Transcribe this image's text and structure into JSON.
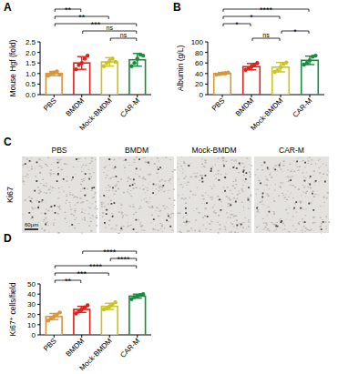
{
  "panel_labels": [
    "A",
    "B",
    "C",
    "D"
  ],
  "chart_data": [
    {
      "type": "bar",
      "y_label": "Mouse Hgf (fold)",
      "categories": [
        "PBS",
        "BMDM",
        "Mock-BMDM",
        "CAR-M"
      ],
      "values": [
        1.0,
        1.5,
        1.55,
        1.65
      ],
      "errors": [
        0.1,
        0.3,
        0.2,
        0.3
      ],
      "points": [
        [
          0.9,
          1.0,
          1.05,
          1.1,
          0.95
        ],
        [
          1.2,
          1.4,
          1.5,
          1.7,
          1.85
        ],
        [
          1.35,
          1.5,
          1.6,
          1.7,
          1.55
        ],
        [
          1.35,
          1.5,
          1.7,
          1.9,
          1.85
        ]
      ],
      "colors": [
        "#d9953b",
        "#e0201b",
        "#c9c421",
        "#1a8a3c"
      ],
      "ylim": [
        0,
        2.5
      ],
      "yticks": [
        {
          "value": 0,
          "label": "0.0"
        },
        0.5,
        {
          "value": 1,
          "label": "1.0"
        },
        1.5,
        {
          "value": 2,
          "label": "2.0"
        },
        2.5
      ],
      "significance": [
        {
          "between": [
            "Mock-BMDM",
            "CAR-M"
          ],
          "label": "ns"
        },
        {
          "between": [
            "BMDM",
            "CAR-M"
          ],
          "label": "ns"
        },
        {
          "between": [
            "PBS",
            "CAR-M"
          ],
          "label": "***"
        },
        {
          "between": [
            "PBS",
            "Mock-BMDM"
          ],
          "label": "**"
        },
        {
          "between": [
            "PBS",
            "BMDM"
          ],
          "label": "**"
        }
      ]
    },
    {
      "type": "bar",
      "y_label": "Albumin (g/L)",
      "categories": [
        "PBS",
        "BMDM",
        "Mock-BMDM",
        "CAR-M"
      ],
      "values": [
        40,
        53,
        52,
        65
      ],
      "errors": [
        2,
        6,
        9,
        8
      ],
      "points": [
        [
          38,
          39,
          40,
          41,
          42
        ],
        [
          47,
          50,
          53,
          57,
          60
        ],
        [
          43,
          46,
          52,
          58,
          61
        ],
        [
          57,
          60,
          65,
          72,
          74
        ]
      ],
      "colors": [
        "#d9953b",
        "#e0201b",
        "#c9c421",
        "#1a8a3c"
      ],
      "ylim": [
        0,
        100
      ],
      "yticks": [
        0,
        20,
        40,
        60,
        80,
        100
      ],
      "significance": [
        {
          "between": [
            "BMDM",
            "Mock-BMDM"
          ],
          "label": "ns"
        },
        {
          "between": [
            "Mock-BMDM",
            "CAR-M"
          ],
          "label": "*"
        },
        {
          "between": [
            "PBS",
            "BMDM"
          ],
          "label": "*"
        },
        {
          "between": [
            "PBS",
            "Mock-BMDM"
          ],
          "label": "*"
        },
        {
          "between": [
            "PBS",
            "CAR-M"
          ],
          "label": "****"
        }
      ]
    },
    {
      "type": "bar",
      "y_label": "Ki67⁺ cells/field",
      "categories": [
        "PBS",
        "BMDM",
        "Mock-BMDM",
        "CAR-M"
      ],
      "values": [
        18,
        25,
        28,
        38
      ],
      "errors": [
        3,
        3,
        3,
        2
      ],
      "points": [
        [
          14,
          16,
          18,
          20,
          22
        ],
        [
          21,
          23,
          25,
          27,
          29
        ],
        [
          25,
          26,
          28,
          30,
          32
        ],
        [
          35,
          37,
          38,
          39,
          40
        ]
      ],
      "colors": [
        "#d9953b",
        "#e0201b",
        "#c9c421",
        "#1a8a3c"
      ],
      "ylim": [
        0,
        50
      ],
      "yticks": [
        0,
        10,
        20,
        30,
        40,
        50
      ],
      "significance": [
        {
          "between": [
            "PBS",
            "BMDM"
          ],
          "label": "**"
        },
        {
          "between": [
            "PBS",
            "Mock-BMDM"
          ],
          "label": "***"
        },
        {
          "between": [
            "PBS",
            "CAR-M"
          ],
          "label": "****"
        },
        {
          "between": [
            "Mock-BMDM",
            "CAR-M"
          ],
          "label": "****"
        },
        {
          "between": [
            "BMDM",
            "CAR-M"
          ],
          "label": "****"
        }
      ]
    }
  ],
  "images": {
    "row_label": "Ki67",
    "titles": [
      "PBS",
      "BMDM",
      "Mock-BMDM",
      "CAR-M"
    ],
    "scale_bar": "60μm"
  }
}
